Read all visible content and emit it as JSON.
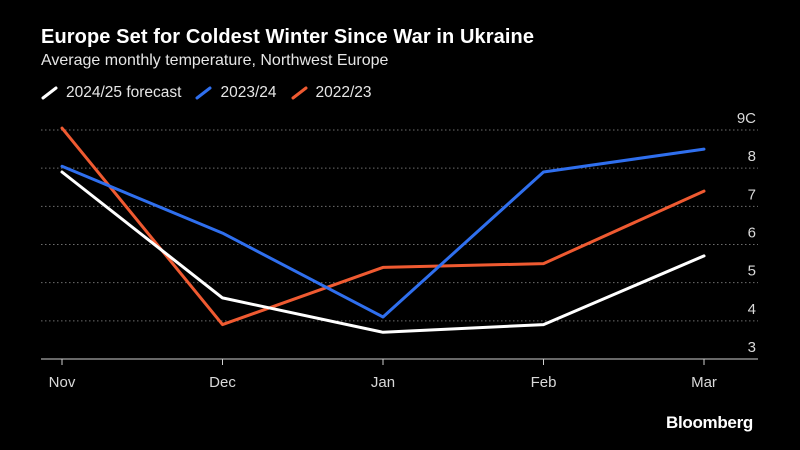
{
  "header": {
    "title": "Europe Set for Coldest Winter Since War in Ukraine",
    "subtitle": "Average monthly temperature, Northwest Europe"
  },
  "branding": {
    "logo_text": "Bloomberg"
  },
  "colors": {
    "background": "#000000",
    "gridline": "#6e6e6e",
    "tick_text": "#d9d9d9"
  },
  "chart_data": {
    "type": "line",
    "title": "Europe Set for Coldest Winter Since War in Ukraine",
    "subtitle": "Average monthly temperature, Northwest Europe",
    "xlabel": "",
    "ylabel": "",
    "categories": [
      "Nov",
      "Dec",
      "Jan",
      "Feb",
      "Mar"
    ],
    "ylim": [
      3,
      9
    ],
    "yticks": [
      3,
      4,
      5,
      6,
      7,
      8,
      9
    ],
    "ytick_labels": [
      "3",
      "4",
      "5",
      "6",
      "7",
      "8",
      "9C"
    ],
    "y_axis_side": "right",
    "grid": true,
    "legend_position": "top-left",
    "series": [
      {
        "name": "2024/25 forecast",
        "color": "#ffffff",
        "values": [
          7.9,
          4.6,
          3.7,
          3.9,
          5.7
        ]
      },
      {
        "name": "2023/24",
        "color": "#2f6fee",
        "values": [
          8.05,
          6.3,
          4.1,
          7.9,
          8.5
        ]
      },
      {
        "name": "2022/23",
        "color": "#ef5a31",
        "values": [
          9.05,
          3.9,
          5.4,
          5.5,
          7.4
        ]
      }
    ]
  }
}
